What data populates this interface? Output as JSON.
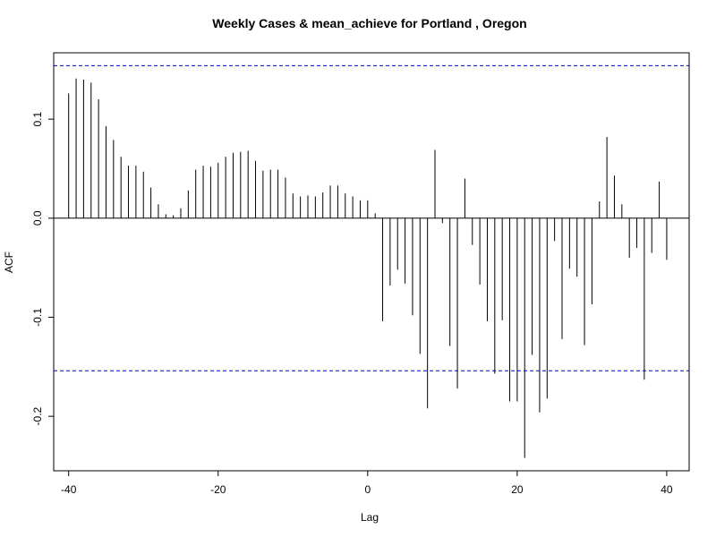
{
  "chart_data": {
    "type": "bar",
    "title": "Weekly Cases & mean_achieve for Portland , Oregon",
    "xlabel": "Lag",
    "ylabel": "ACF",
    "xlim": [
      -42,
      43
    ],
    "ylim": [
      -0.255,
      0.167
    ],
    "x_ticks": [
      -40,
      -20,
      0,
      20,
      40
    ],
    "x_tick_labels": [
      "-40",
      "-20",
      "0",
      "20",
      "40"
    ],
    "y_ticks": [
      -0.2,
      -0.1,
      0.0,
      0.1
    ],
    "y_tick_labels": [
      "-0.2",
      "-0.1",
      "0.0",
      "0.1"
    ],
    "confidence_bound": 0.154,
    "confidence_color": "#0000cc",
    "bar_color": "#000000",
    "grid": false,
    "x": [
      -40,
      -39,
      -38,
      -37,
      -36,
      -35,
      -34,
      -33,
      -32,
      -31,
      -30,
      -29,
      -28,
      -27,
      -26,
      -25,
      -24,
      -23,
      -22,
      -21,
      -20,
      -19,
      -18,
      -17,
      -16,
      -15,
      -14,
      -13,
      -12,
      -11,
      -10,
      -9,
      -8,
      -7,
      -6,
      -5,
      -4,
      -3,
      -2,
      -1,
      0,
      1,
      2,
      3,
      4,
      5,
      6,
      7,
      8,
      9,
      10,
      11,
      12,
      13,
      14,
      15,
      16,
      17,
      18,
      19,
      20,
      21,
      22,
      23,
      24,
      25,
      26,
      27,
      28,
      29,
      30,
      31,
      32,
      33,
      34,
      35,
      36,
      37,
      38,
      39,
      40
    ],
    "values": [
      0.126,
      0.141,
      0.14,
      0.137,
      0.12,
      0.093,
      0.079,
      0.062,
      0.053,
      0.053,
      0.047,
      0.031,
      0.014,
      0.004,
      0.003,
      0.01,
      0.028,
      0.049,
      0.053,
      0.052,
      0.056,
      0.062,
      0.066,
      0.067,
      0.068,
      0.058,
      0.048,
      0.049,
      0.049,
      0.041,
      0.025,
      0.022,
      0.023,
      0.022,
      0.026,
      0.033,
      0.033,
      0.025,
      0.022,
      0.018,
      0.018,
      0.005,
      -0.104,
      -0.068,
      -0.052,
      -0.066,
      -0.098,
      -0.137,
      -0.192,
      0.069,
      -0.005,
      -0.129,
      -0.172,
      0.04,
      -0.027,
      -0.067,
      -0.104,
      -0.157,
      -0.103,
      -0.185,
      -0.185,
      -0.242,
      -0.138,
      -0.196,
      -0.182,
      -0.023,
      -0.122,
      -0.051,
      -0.059,
      -0.128,
      -0.087,
      0.017,
      0.082,
      0.043,
      0.014,
      -0.04,
      -0.03,
      -0.163,
      -0.035,
      0.037,
      -0.042
    ]
  }
}
